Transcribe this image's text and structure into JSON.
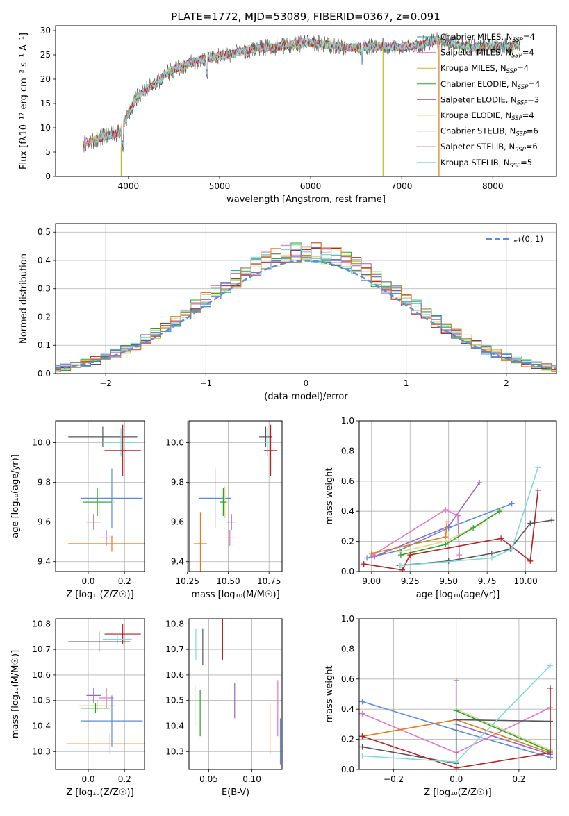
{
  "figure_title": "PLATE=1772, MJD=53089, FIBERID=0367, z=0.091",
  "colors": {
    "Chabrier MILES": "#1f9e89",
    "Salpeter MILES": "#e377c2",
    "Kroupa MILES": "#bcbd22",
    "Chabrier ELODIE": "#2ca02c",
    "Salpeter ELODIE": "#9467bd",
    "Kroupa ELODIE": "#dbdb8d",
    "Chabrier STELIB": "#555555",
    "Salpeter STELIB": "#b22222",
    "Kroupa STELIB": "#80d8dc",
    "extra_blue": "#5b8bd9",
    "extra_orange": "#e07b1a",
    "normal_curve": "#5b8bd9"
  },
  "chart_data": [
    {
      "type": "line",
      "title": "PLATE=1772, MJD=53089, FIBERID=0367, z=0.091",
      "xlabel": "wavelength [Angstrom, rest frame]",
      "ylabel": "Flux [fλ10⁻¹⁷ erg cm⁻² s⁻¹ A⁻¹]",
      "xlim": [
        3200,
        8700
      ],
      "ylim": [
        0,
        31
      ],
      "xticks": [
        4000,
        5000,
        6000,
        7000,
        8000
      ],
      "yticks": [
        0,
        5,
        10,
        15,
        20,
        25,
        30
      ],
      "legend": [
        "Chabrier MILES, NSSP=4",
        "Salpeter MILES, NSSP=4",
        "Kroupa MILES, NSSP=4",
        "Chabrier ELODIE, NSSP=4",
        "Salpeter ELODIE, NSSP=3",
        "Kroupa ELODIE, NSSP=4",
        "Chabrier STELIB, NSSP=6",
        "Salpeter STELIB, NSSP=6",
        "Kroupa STELIB, NSSP=5"
      ],
      "legend_position": "top-right",
      "grid": false,
      "spectrum_envelope": {
        "x": [
          3500,
          3700,
          3900,
          4000,
          4100,
          4200,
          4300,
          4400,
          4500,
          4700,
          4900,
          5100,
          5300,
          5500,
          5800,
          6000,
          6200,
          6400,
          6600,
          6800,
          7000,
          7200,
          7400,
          7600,
          7800,
          8000,
          8300
        ],
        "y": [
          6.5,
          8,
          9,
          13,
          16.5,
          18,
          19,
          21,
          22,
          23.5,
          24.5,
          25,
          26,
          26.5,
          27,
          27.5,
          27,
          26.5,
          26.5,
          26.8,
          26.5,
          27,
          28,
          27,
          26.5,
          26.8,
          27
        ]
      }
    },
    {
      "type": "line",
      "xlabel": "(data-model)/error",
      "ylabel": "Normed distribution",
      "xlim": [
        -2.5,
        2.5
      ],
      "ylim": [
        0,
        0.53
      ],
      "xticks": [
        -2,
        -1,
        0,
        1,
        2
      ],
      "yticks": [
        0.0,
        0.1,
        0.2,
        0.3,
        0.4,
        0.5
      ],
      "grid": true,
      "legend": [
        "𝒩(0, 1)"
      ],
      "legend_position": "top-right",
      "histogram_bin_width": 0.1
    },
    {
      "type": "scatter",
      "xlabel": "Z [log₁₀(Z/Z☉)]",
      "ylabel": "age [log₁₀(age/yr)]",
      "xlim": [
        -0.18,
        0.31
      ],
      "ylim": [
        9.35,
        10.11
      ],
      "xticks": [
        0.0,
        0.2
      ],
      "yticks": [
        9.4,
        9.6,
        9.8,
        10.0
      ],
      "grid": true,
      "points": [
        {
          "color": "Chabrier STELIB",
          "x": 0.08,
          "xerr": 0.19,
          "y": 10.03,
          "yerr": 0.05
        },
        {
          "color": "Kroupa STELIB",
          "x": 0.18,
          "xerr": 0.1,
          "y": 10.0,
          "yerr": 0.07
        },
        {
          "color": "Salpeter STELIB",
          "x": 0.19,
          "xerr": 0.1,
          "y": 9.96,
          "yerr": 0.13
        },
        {
          "color": "extra_blue",
          "x": 0.13,
          "xerr": 0.17,
          "y": 9.72,
          "yerr": 0.15
        },
        {
          "color": "Kroupa ELODIE",
          "x": 0.06,
          "xerr": 0.09,
          "y": 9.7,
          "yerr": 0.08
        },
        {
          "color": "Chabrier ELODIE",
          "x": 0.05,
          "xerr": 0.08,
          "y": 9.7,
          "yerr": 0.07
        },
        {
          "color": "Salpeter ELODIE",
          "x": 0.03,
          "xerr": 0.04,
          "y": 9.6,
          "yerr": 0.04
        },
        {
          "color": "Salpeter MILES",
          "x": 0.1,
          "xerr": 0.04,
          "y": 9.52,
          "yerr": 0.04
        },
        {
          "color": "extra_orange",
          "x": 0.13,
          "xerr": 0.24,
          "y": 9.49,
          "yerr": 0.04
        }
      ]
    },
    {
      "type": "scatter",
      "xlabel": "mass [log₁₀(M/M☉)]",
      "ylabel": "",
      "xlim": [
        10.26,
        10.83
      ],
      "ylim": [
        9.35,
        10.11
      ],
      "xticks": [
        10.25,
        10.5,
        10.75
      ],
      "yticks": [
        9.4,
        9.6,
        9.8,
        10.0
      ],
      "grid": true,
      "points": [
        {
          "color": "Chabrier STELIB",
          "x": 10.73,
          "xerr": 0.04,
          "y": 10.03,
          "yerr": 0.05
        },
        {
          "color": "Kroupa STELIB",
          "x": 10.74,
          "xerr": 0.02,
          "y": 10.0,
          "yerr": 0.07
        },
        {
          "color": "Salpeter STELIB",
          "x": 10.76,
          "xerr": 0.04,
          "y": 9.96,
          "yerr": 0.13
        },
        {
          "color": "extra_blue",
          "x": 10.42,
          "xerr": 0.1,
          "y": 9.72,
          "yerr": 0.15
        },
        {
          "color": "Kroupa ELODIE",
          "x": 10.48,
          "xerr": 0.02,
          "y": 9.7,
          "yerr": 0.08
        },
        {
          "color": "Chabrier ELODIE",
          "x": 10.47,
          "xerr": 0.02,
          "y": 9.7,
          "yerr": 0.07
        },
        {
          "color": "Salpeter ELODIE",
          "x": 10.52,
          "xerr": 0.03,
          "y": 9.6,
          "yerr": 0.04
        },
        {
          "color": "Salpeter MILES",
          "x": 10.51,
          "xerr": 0.04,
          "y": 9.52,
          "yerr": 0.04
        },
        {
          "color": "extra_orange",
          "x": 10.33,
          "xerr": 0.04,
          "y": 9.49,
          "yerr": 0.16
        }
      ]
    },
    {
      "type": "line",
      "xlabel": "age [log₁₀(age/yr)]",
      "ylabel": "mass weight",
      "xlim": [
        8.92,
        10.2
      ],
      "ylim": [
        0,
        1.0
      ],
      "xticks": [
        9.0,
        9.25,
        9.5,
        9.75,
        10.0
      ],
      "yticks": [
        0.0,
        0.2,
        0.4,
        0.6,
        0.8,
        1.0
      ],
      "grid": true,
      "series": [
        {
          "color": "extra_blue",
          "x": [
            8.97,
            9.18,
            9.5,
            9.91
          ],
          "y": [
            0.09,
            0.14,
            0.29,
            0.45
          ]
        },
        {
          "color": "Salpeter ELODIE",
          "x": [
            9.02,
            9.5,
            9.7
          ],
          "y": [
            0.1,
            0.3,
            0.59
          ]
        },
        {
          "color": "Salpeter MILES",
          "x": [
            9.01,
            9.48,
            9.56,
            9.57
          ],
          "y": [
            0.11,
            0.41,
            0.37,
            0.11
          ]
        },
        {
          "color": "extra_orange",
          "x": [
            9.0,
            9.48,
            9.49
          ],
          "y": [
            0.12,
            0.23,
            0.33
          ]
        },
        {
          "color": "Kroupa ELODIE",
          "x": [
            9.18,
            9.48,
            9.7,
            9.84
          ],
          "y": [
            0.13,
            0.2,
            0.31,
            0.41
          ]
        },
        {
          "color": "Chabrier ELODIE",
          "x": [
            9.19,
            9.48,
            9.66,
            9.83
          ],
          "y": [
            0.11,
            0.18,
            0.29,
            0.4
          ]
        },
        {
          "color": "Chabrier STELIB",
          "x": [
            9.18,
            9.5,
            9.78,
            9.9,
            10.03,
            10.17
          ],
          "y": [
            0.04,
            0.07,
            0.12,
            0.15,
            0.32,
            0.34
          ]
        },
        {
          "color": "Salpeter STELIB",
          "x": [
            8.95,
            9.2,
            9.25,
            9.84,
            10.03,
            10.08
          ],
          "y": [
            0.05,
            0.01,
            0.11,
            0.22,
            0.07,
            0.54
          ]
        },
        {
          "color": "Kroupa STELIB",
          "x": [
            9.19,
            9.78,
            9.91,
            10.08
          ],
          "y": [
            0.04,
            0.09,
            0.15,
            0.69
          ]
        }
      ]
    },
    {
      "type": "scatter",
      "xlabel": "Z [log₁₀(Z/Z☉)]",
      "ylabel": "mass [log₁₀(M/M☉)]",
      "xlim": [
        -0.18,
        0.31
      ],
      "ylim": [
        10.23,
        10.82
      ],
      "xticks": [
        0.0,
        0.2
      ],
      "yticks": [
        10.3,
        10.4,
        10.5,
        10.6,
        10.7,
        10.8
      ],
      "grid": true,
      "points": [
        {
          "color": "Salpeter STELIB",
          "x": 0.19,
          "xerr": 0.1,
          "y": 10.76,
          "yerr": 0.04
        },
        {
          "color": "Kroupa STELIB",
          "x": 0.16,
          "xerr": 0.08,
          "y": 10.74,
          "yerr": 0.02
        },
        {
          "color": "Chabrier STELIB",
          "x": 0.06,
          "xerr": 0.17,
          "y": 10.73,
          "yerr": 0.04
        },
        {
          "color": "Salpeter ELODIE",
          "x": 0.03,
          "xerr": 0.04,
          "y": 10.52,
          "yerr": 0.03
        },
        {
          "color": "Salpeter MILES",
          "x": 0.1,
          "xerr": 0.04,
          "y": 10.51,
          "yerr": 0.04
        },
        {
          "color": "Kroupa ELODIE",
          "x": 0.05,
          "xerr": 0.1,
          "y": 10.48,
          "yerr": 0.02
        },
        {
          "color": "Chabrier ELODIE",
          "x": 0.04,
          "xerr": 0.08,
          "y": 10.47,
          "yerr": 0.02
        },
        {
          "color": "extra_blue",
          "x": 0.13,
          "xerr": 0.17,
          "y": 10.42,
          "yerr": 0.1
        },
        {
          "color": "extra_orange",
          "x": 0.12,
          "xerr": 0.24,
          "y": 10.33,
          "yerr": 0.04
        }
      ]
    },
    {
      "type": "scatter",
      "xlabel": "E(B-V)",
      "ylabel": "",
      "xlim": [
        0.027,
        0.135
      ],
      "ylim": [
        10.23,
        10.82
      ],
      "xticks": [
        0.05,
        0.1
      ],
      "yticks": [
        10.3,
        10.4,
        10.5,
        10.6,
        10.7,
        10.8
      ],
      "grid": true,
      "points": [
        {
          "color": "Kroupa STELIB",
          "x": 0.035,
          "y": 10.72,
          "yerr": 0.06
        },
        {
          "color": "Chabrier STELIB",
          "x": 0.043,
          "y": 10.71,
          "yerr": 0.07
        },
        {
          "color": "Salpeter STELIB",
          "x": 0.066,
          "y": 10.74,
          "yerr": 0.08
        },
        {
          "color": "Kroupa ELODIE",
          "x": 0.034,
          "y": 10.48,
          "yerr": 0.08
        },
        {
          "color": "Chabrier ELODIE",
          "x": 0.04,
          "y": 10.45,
          "yerr": 0.09
        },
        {
          "color": "Salpeter ELODIE",
          "x": 0.08,
          "y": 10.5,
          "yerr": 0.07
        },
        {
          "color": "Salpeter MILES",
          "x": 0.13,
          "y": 10.47,
          "yerr": 0.11
        },
        {
          "color": "extra_orange",
          "x": 0.121,
          "y": 10.39,
          "yerr": 0.1
        },
        {
          "color": "extra_blue",
          "x": 0.133,
          "y": 10.34,
          "yerr": 0.09
        }
      ]
    },
    {
      "type": "line",
      "xlabel": "Z [log₁₀(Z/Z☉)]",
      "ylabel": "mass weight",
      "xlim": [
        -0.31,
        0.32
      ],
      "ylim": [
        0,
        1.0
      ],
      "xticks": [
        -0.2,
        0.0,
        0.2
      ],
      "yticks": [
        0.0,
        0.2,
        0.4,
        0.6,
        0.8,
        1.0
      ],
      "grid": true,
      "series": [
        {
          "color": "extra_blue",
          "x": [
            -0.3,
            0.0,
            0.3
          ],
          "y": [
            0.45,
            0.26,
            0.08
          ]
        },
        {
          "color": "Salpeter MILES",
          "x": [
            -0.3,
            0.0,
            0.3
          ],
          "y": [
            0.37,
            0.11,
            0.41
          ]
        },
        {
          "color": "extra_orange",
          "x": [
            -0.3,
            0.0,
            0.3
          ],
          "y": [
            0.22,
            0.33,
            0.11
          ]
        },
        {
          "color": "Salpeter ELODIE",
          "x": [
            0.0,
            0.0,
            0.3
          ],
          "y": [
            0.59,
            0.3,
            0.1
          ]
        },
        {
          "color": "Kroupa ELODIE",
          "x": [
            0.0,
            0.3
          ],
          "y": [
            0.4,
            0.13
          ]
        },
        {
          "color": "Chabrier ELODIE",
          "x": [
            0.0,
            0.3
          ],
          "y": [
            0.39,
            0.12
          ]
        },
        {
          "color": "Chabrier STELIB",
          "x": [
            -0.3,
            0.0,
            0.0,
            0.3
          ],
          "y": [
            0.15,
            0.04,
            0.33,
            0.32
          ]
        },
        {
          "color": "Salpeter STELIB",
          "x": [
            -0.3,
            0.0,
            0.3,
            0.3
          ],
          "y": [
            0.22,
            0.01,
            0.11,
            0.54
          ]
        },
        {
          "color": "Kroupa STELIB",
          "x": [
            -0.3,
            0.0,
            0.3
          ],
          "y": [
            0.09,
            0.05,
            0.69
          ]
        }
      ]
    }
  ]
}
